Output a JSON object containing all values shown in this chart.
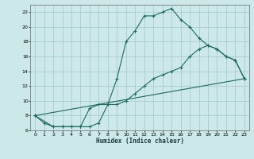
{
  "xlabel": "Humidex (Indice chaleur)",
  "bg_color": "#cce8e8",
  "grid_color": "#aacccc",
  "line_color": "#1a6b5a",
  "xlim": [
    -0.5,
    23.5
  ],
  "ylim": [
    6,
    23
  ],
  "xticks": [
    0,
    1,
    2,
    3,
    4,
    5,
    6,
    7,
    8,
    9,
    10,
    11,
    12,
    13,
    14,
    15,
    16,
    17,
    18,
    19,
    20,
    21,
    22,
    23
  ],
  "yticks": [
    6,
    8,
    10,
    12,
    14,
    16,
    18,
    20,
    22
  ],
  "line1_x": [
    0,
    1,
    2,
    3,
    4,
    5,
    6,
    7,
    8,
    9,
    10,
    11,
    12,
    13,
    14,
    15,
    16,
    17,
    18,
    19,
    20,
    21,
    22,
    23
  ],
  "line1_y": [
    8,
    7,
    6.5,
    6.5,
    6.5,
    6.5,
    6.5,
    7,
    9.5,
    13,
    18,
    19.5,
    21.5,
    21.5,
    22,
    22.5,
    21,
    20,
    18.5,
    17.5,
    17,
    16,
    15.5,
    13
  ],
  "line2_x": [
    0,
    2,
    3,
    4,
    5,
    6,
    7,
    8,
    9,
    10,
    11,
    12,
    13,
    14,
    15,
    16,
    17,
    18,
    19,
    20,
    21,
    22,
    23
  ],
  "line2_y": [
    8,
    6.5,
    6.5,
    6.5,
    6.5,
    9,
    9.5,
    9.5,
    9.5,
    10,
    11,
    12,
    13,
    13.5,
    14,
    14.5,
    16,
    17,
    17.5,
    17,
    16,
    15.5,
    13
  ],
  "line3_x": [
    0,
    23
  ],
  "line3_y": [
    8,
    13
  ]
}
